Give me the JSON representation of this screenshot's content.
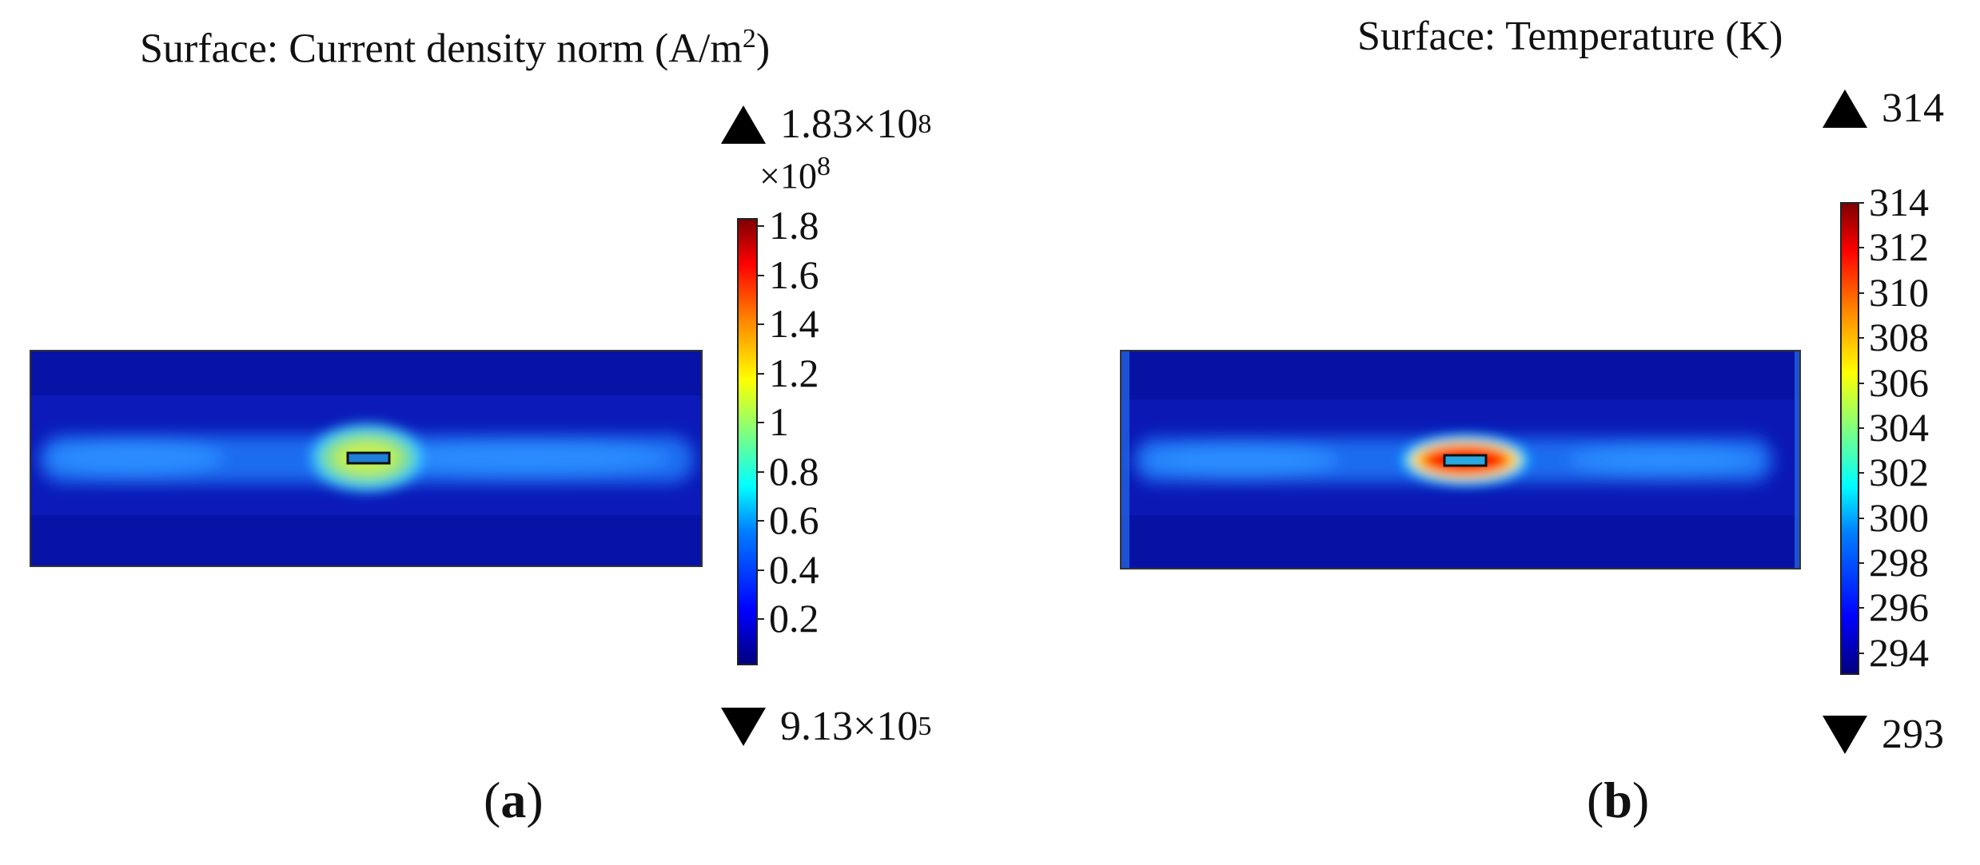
{
  "chart_data": [
    {
      "type": "heatmap",
      "title": "Surface: Current density norm (A/m²)",
      "title_text": "Surface: Current density norm (A/m",
      "title_sup": "2",
      "title_end": ")",
      "max_label": "1.83×10",
      "max_exp": "8",
      "min_label": "9.13×10",
      "min_exp": "5",
      "multiplier_label": "×10",
      "multiplier_exp": "8",
      "colorbar_ticks": [
        "1.8",
        "1.6",
        "1.4",
        "1.2",
        "1",
        "0.8",
        "0.6",
        "0.4",
        "0.2"
      ],
      "colorbar_range": [
        0.00913,
        1.83
      ],
      "caption_letter": "a",
      "caption_open": "(",
      "caption_close": ")"
    },
    {
      "type": "heatmap",
      "title": "Surface: Temperature (K)",
      "max_label": "314",
      "min_label": "293",
      "colorbar_ticks": [
        "314",
        "312",
        "310",
        "308",
        "306",
        "304",
        "302",
        "300",
        "298",
        "296",
        "294"
      ],
      "colorbar_range": [
        293,
        314
      ],
      "caption_letter": "b",
      "caption_open": "(",
      "caption_close": ")"
    }
  ]
}
